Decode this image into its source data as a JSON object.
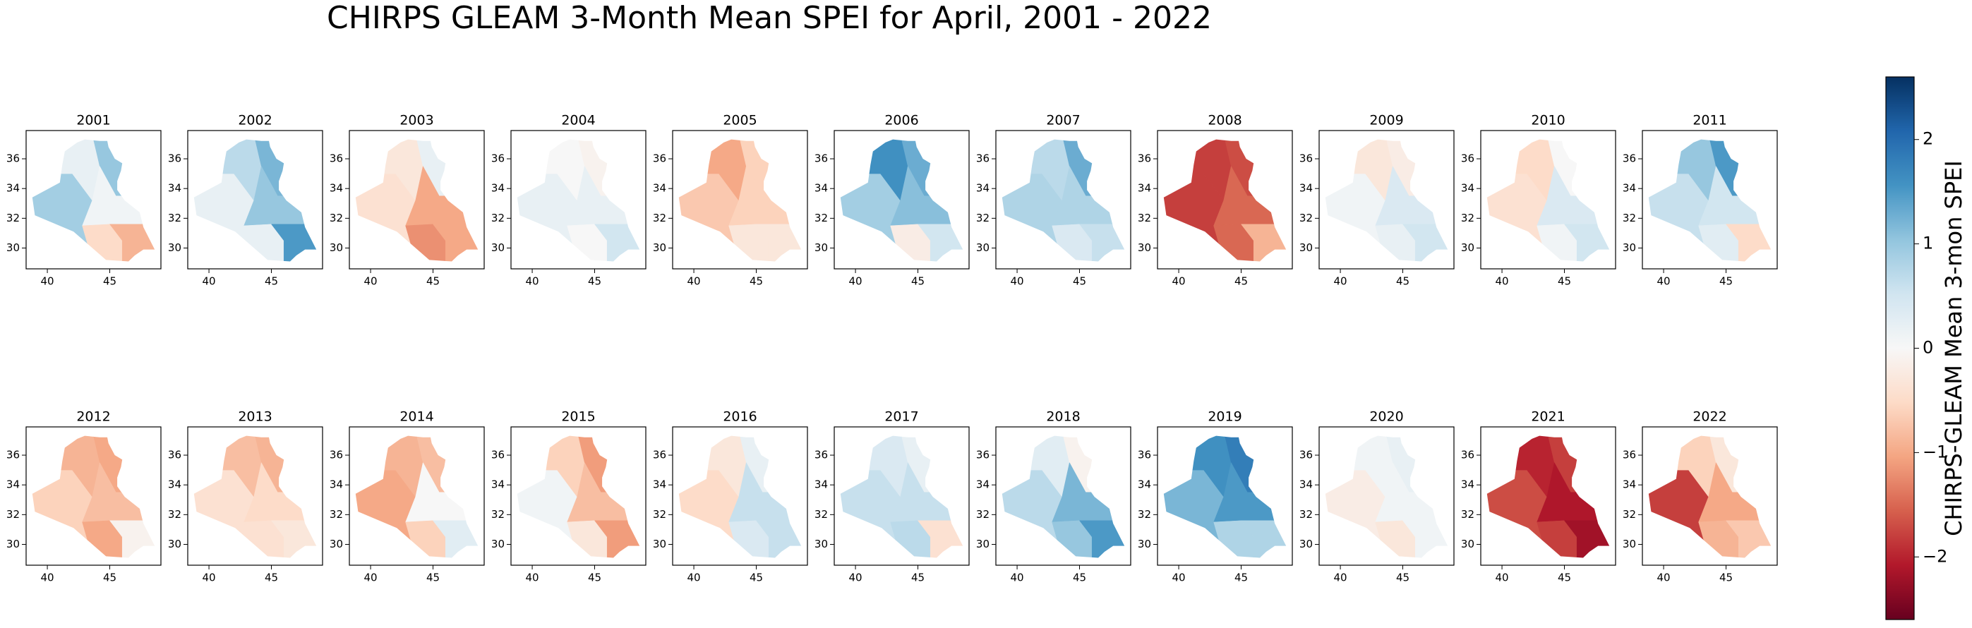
{
  "title": "CHIRPS GLEAM 3-Month Mean SPEI for April, 2001 - 2022",
  "xlim": [
    38.3,
    49.1
  ],
  "ylim": [
    28.6,
    37.9
  ],
  "xticks": [
    40,
    45
  ],
  "yticks": [
    30,
    32,
    34,
    36
  ],
  "panels": [
    {
      "title": "2001",
      "values": [
        0.9,
        0.2,
        1.0,
        0.1,
        -0.5,
        -0.9
      ]
    },
    {
      "title": "2002",
      "values": [
        0.2,
        0.7,
        1.2,
        1.0,
        0.2,
        1.5
      ]
    },
    {
      "title": "2003",
      "values": [
        -0.4,
        -0.3,
        0.2,
        -1.0,
        -1.2,
        -1.0
      ]
    },
    {
      "title": "2004",
      "values": [
        0.2,
        0.0,
        -0.1,
        0.2,
        0.0,
        0.5
      ]
    },
    {
      "title": "2005",
      "values": [
        -0.7,
        -1.0,
        -0.6,
        -0.6,
        -0.3,
        -0.3
      ]
    },
    {
      "title": "2006",
      "values": [
        0.9,
        1.6,
        1.3,
        1.1,
        -0.2,
        0.5
      ]
    },
    {
      "title": "2007",
      "values": [
        0.8,
        0.7,
        1.3,
        0.8,
        0.4,
        0.6
      ]
    },
    {
      "title": "2008",
      "values": [
        -1.8,
        -1.8,
        -1.7,
        -1.5,
        -1.5,
        -0.9
      ]
    },
    {
      "title": "2009",
      "values": [
        0.1,
        -0.3,
        -0.2,
        0.4,
        0.2,
        0.5
      ]
    },
    {
      "title": "2010",
      "values": [
        -0.4,
        -0.5,
        0.0,
        0.4,
        0.1,
        0.5
      ]
    },
    {
      "title": "2011",
      "values": [
        0.6,
        1.0,
        1.5,
        0.5,
        0.3,
        -0.5
      ]
    },
    {
      "title": "2012",
      "values": [
        -0.6,
        -0.9,
        -1.0,
        -0.8,
        -1.0,
        -0.1
      ]
    },
    {
      "title": "2013",
      "values": [
        -0.4,
        -0.8,
        -0.9,
        -0.5,
        -0.4,
        -0.3
      ]
    },
    {
      "title": "2014",
      "values": [
        -1.0,
        -0.9,
        -0.8,
        0.0,
        -0.6,
        0.3
      ]
    },
    {
      "title": "2015",
      "values": [
        0.1,
        -0.6,
        -1.1,
        -0.8,
        -0.3,
        -1.1
      ]
    },
    {
      "title": "2016",
      "values": [
        -0.5,
        -0.3,
        0.2,
        0.6,
        0.4,
        0.6
      ]
    },
    {
      "title": "2017",
      "values": [
        0.6,
        0.4,
        0.2,
        0.6,
        0.7,
        -0.4
      ]
    },
    {
      "title": "2018",
      "values": [
        0.7,
        0.3,
        -0.1,
        1.2,
        1.0,
        1.5
      ]
    },
    {
      "title": "2019",
      "values": [
        1.2,
        1.6,
        1.8,
        1.5,
        0.8,
        0.8
      ]
    },
    {
      "title": "2020",
      "values": [
        -0.2,
        0.1,
        0.2,
        0.1,
        -0.3,
        0.1
      ]
    },
    {
      "title": "2021",
      "values": [
        -1.7,
        -2.0,
        -1.8,
        -2.1,
        -1.8,
        -2.2
      ]
    },
    {
      "title": "2022",
      "values": [
        -1.8,
        -0.6,
        -0.3,
        -1.0,
        -0.9,
        -0.7
      ]
    }
  ],
  "colorbar": {
    "label": "CHIRPS-GLEAM Mean 3-mon SPEI",
    "cmap": "RdBu",
    "lim": [
      -2.6,
      2.6
    ],
    "ticks": [
      {
        "value": -2,
        "label": "−2"
      },
      {
        "value": -1,
        "label": "−1"
      },
      0,
      1,
      2
    ]
  }
}
